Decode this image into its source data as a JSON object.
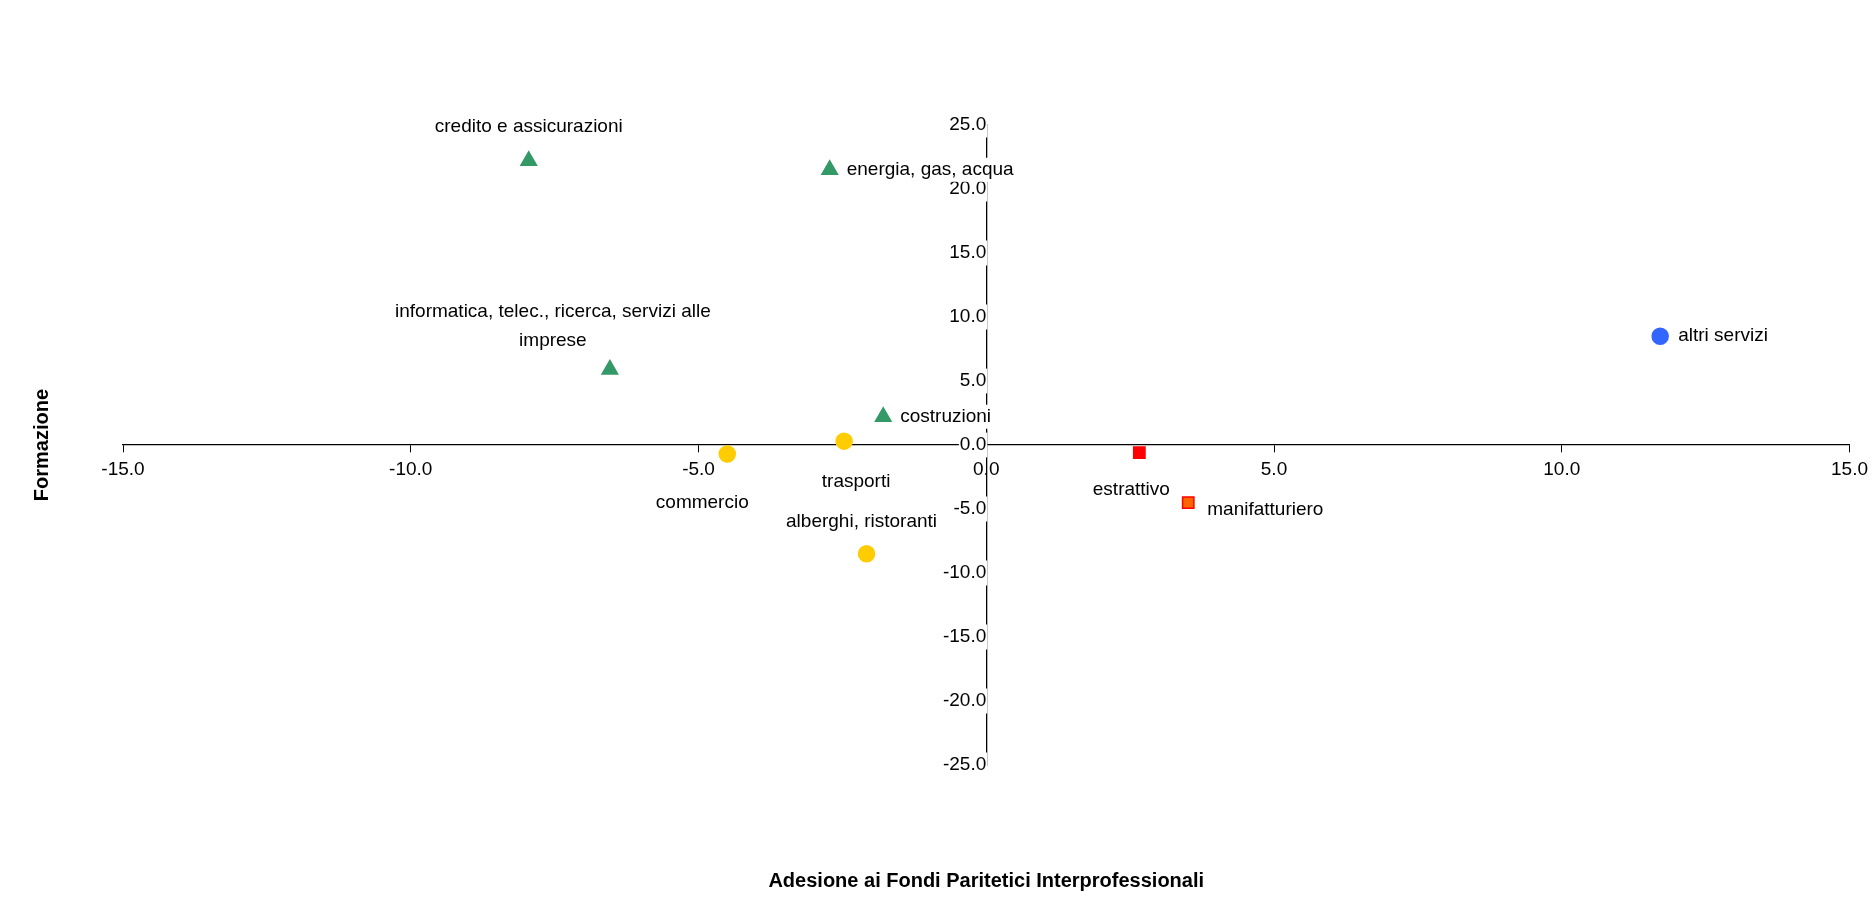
{
  "chart_data": {
    "type": "scatter",
    "xlabel": "Adesione ai Fondi Paritetici Interprofessionali",
    "ylabel": "Formazione",
    "xlim": [
      -15,
      15
    ],
    "xticks": [
      {
        "value": -15,
        "label": "-15.0"
      },
      {
        "value": -10,
        "label": "-10.0"
      },
      {
        "value": -5,
        "label": "-5.0"
      },
      {
        "value": 0,
        "label": "0.0"
      },
      {
        "value": 5,
        "label": "5.0"
      },
      {
        "value": 10,
        "label": "10.0"
      },
      {
        "value": 15,
        "label": "15.0"
      }
    ],
    "ylim": [
      -25,
      25
    ],
    "yticks": [
      {
        "value": -25,
        "label": "-25.0"
      },
      {
        "value": -20,
        "label": "-20.0"
      },
      {
        "value": -15,
        "label": "-15.0"
      },
      {
        "value": -10,
        "label": "-10.0"
      },
      {
        "value": -5,
        "label": "-5.0"
      },
      {
        "value": 0,
        "label": "0.0"
      },
      {
        "value": 5,
        "label": "5.0"
      },
      {
        "value": 10,
        "label": "10.0"
      },
      {
        "value": 15,
        "label": "15.0"
      },
      {
        "value": 20,
        "label": "20.0"
      },
      {
        "value": 25,
        "label": "25.0"
      }
    ],
    "grid": false,
    "legend": false,
    "series": [
      {
        "marker": "triangle",
        "color": "#339966",
        "x": [
          -7.95,
          -2.72,
          -6.54,
          -1.79
        ],
        "values": [
          22.2,
          21.5,
          5.9,
          2.2
        ]
      },
      {
        "marker": "circle",
        "color": "#ffcc00",
        "x": [
          -4.5,
          -2.47,
          -2.08
        ],
        "values": [
          -0.7,
          0.3,
          -8.5
        ]
      },
      {
        "marker": "square",
        "color": "#ff0000",
        "colors": [
          "#ff0000",
          "#ff6600"
        ],
        "x": [
          2.66,
          3.51
        ],
        "values": [
          -0.6,
          -4.5
        ]
      },
      {
        "marker": "circle",
        "color": "#3366ff",
        "x": [
          11.71
        ],
        "values": [
          8.5
        ]
      }
    ],
    "annotations": [
      {
        "text": "credito e assicurazioni",
        "x": -7.95,
        "y": 22.2
      },
      {
        "text": "energia, gas, acqua",
        "x": -2.72,
        "y": 21.5
      },
      {
        "text": "informatica, telec., ricerca, servizi alle imprese",
        "x": -6.54,
        "y": 5.9
      },
      {
        "text": "costruzioni",
        "x": -1.79,
        "y": 2.2
      },
      {
        "text": "commercio",
        "x": -4.5,
        "y": -0.7
      },
      {
        "text": "trasporti",
        "x": -2.47,
        "y": 0.3
      },
      {
        "text": "alberghi, ristoranti",
        "x": -2.08,
        "y": -8.5
      },
      {
        "text": "estrattivo",
        "x": 2.66,
        "y": -0.6
      },
      {
        "text": "manifatturiero",
        "x": 3.51,
        "y": -4.5
      },
      {
        "text": "altri servizi",
        "x": 11.71,
        "y": 8.5
      }
    ]
  }
}
